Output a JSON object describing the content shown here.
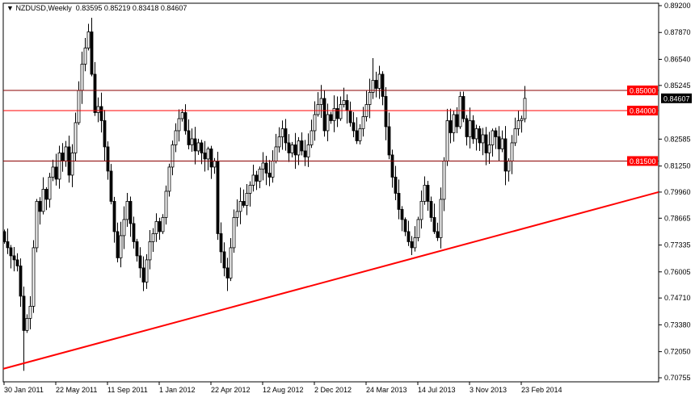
{
  "chart_data": {
    "type": "candlestick",
    "symbol": "NZDUSD,Weekly",
    "header_ohlc": "0.83595 0.85219 0.83418 0.84607",
    "ylim": [
      0.70755,
      0.892
    ],
    "y_ticks": [
      "0.89200",
      "0.87870",
      "0.86540",
      "0.85245",
      "0.82585",
      "0.81250",
      "0.79960",
      "0.78665",
      "0.77335",
      "0.76005",
      "0.74710",
      "0.73380",
      "0.72050",
      "0.70755"
    ],
    "x_ticks": [
      "30 Jan 2011",
      "22 May 2011",
      "11 Sep 2011",
      "1 Jan 2012",
      "22 Apr 2012",
      "12 Aug 2012",
      "2 Dec 2012",
      "24 Mar 2013",
      "14 Jul 2013",
      "3 Nov 2013",
      "23 Feb 2014"
    ],
    "x_tick_every_bars": 16,
    "first_bar": "30 Jan 2011",
    "close": [
      0.775,
      0.772,
      0.768,
      0.766,
      0.763,
      0.748,
      0.731,
      0.737,
      0.743,
      0.772,
      0.795,
      0.79,
      0.801,
      0.796,
      0.807,
      0.812,
      0.806,
      0.819,
      0.815,
      0.822,
      0.808,
      0.819,
      0.834,
      0.85,
      0.863,
      0.871,
      0.879,
      0.858,
      0.839,
      0.842,
      0.835,
      0.822,
      0.81,
      0.795,
      0.78,
      0.767,
      0.778,
      0.786,
      0.795,
      0.784,
      0.775,
      0.768,
      0.762,
      0.755,
      0.766,
      0.775,
      0.779,
      0.785,
      0.78,
      0.787,
      0.8,
      0.812,
      0.823,
      0.83,
      0.836,
      0.839,
      0.83,
      0.823,
      0.826,
      0.82,
      0.824,
      0.819,
      0.816,
      0.821,
      0.812,
      0.815,
      0.779,
      0.77,
      0.762,
      0.757,
      0.772,
      0.787,
      0.79,
      0.795,
      0.793,
      0.799,
      0.803,
      0.808,
      0.805,
      0.811,
      0.814,
      0.809,
      0.807,
      0.815,
      0.822,
      0.827,
      0.831,
      0.824,
      0.819,
      0.823,
      0.818,
      0.825,
      0.82,
      0.817,
      0.823,
      0.83,
      0.838,
      0.843,
      0.846,
      0.83,
      0.838,
      0.835,
      0.841,
      0.836,
      0.843,
      0.845,
      0.84,
      0.834,
      0.83,
      0.825,
      0.831,
      0.837,
      0.843,
      0.849,
      0.855,
      0.851,
      0.858,
      0.847,
      0.832,
      0.818,
      0.807,
      0.799,
      0.791,
      0.786,
      0.78,
      0.775,
      0.772,
      0.777,
      0.786,
      0.795,
      0.803,
      0.795,
      0.787,
      0.78,
      0.777,
      0.796,
      0.815,
      0.835,
      0.829,
      0.838,
      0.832,
      0.847,
      0.836,
      0.827,
      0.835,
      0.826,
      0.831,
      0.824,
      0.828,
      0.819,
      0.823,
      0.83,
      0.827,
      0.821,
      0.826,
      0.81,
      0.815,
      0.824,
      0.831,
      0.835,
      0.83595,
      0.84607
    ],
    "last_bar": {
      "open": 0.83595,
      "high": 0.85219,
      "low": 0.83418,
      "close": 0.84607
    },
    "horizontal_lines": [
      {
        "price": 0.85,
        "label": "0.85000",
        "color": "#8b0000"
      },
      {
        "price": 0.84,
        "label": "0.84000",
        "color": "#ff0000"
      },
      {
        "price": 0.815,
        "label": "0.81500",
        "color": "#8b0000"
      }
    ],
    "trendline": {
      "from": {
        "bar": 0,
        "price": 0.712
      },
      "to": {
        "bar": 202,
        "price": 0.7996
      },
      "color": "#ff0000"
    },
    "last_price_label": "0.84607",
    "colors": {
      "bull": "#ffffff",
      "bear": "#000000",
      "line": "#000000",
      "label_bg": "#ff0000",
      "last_bg": "#000000"
    }
  }
}
